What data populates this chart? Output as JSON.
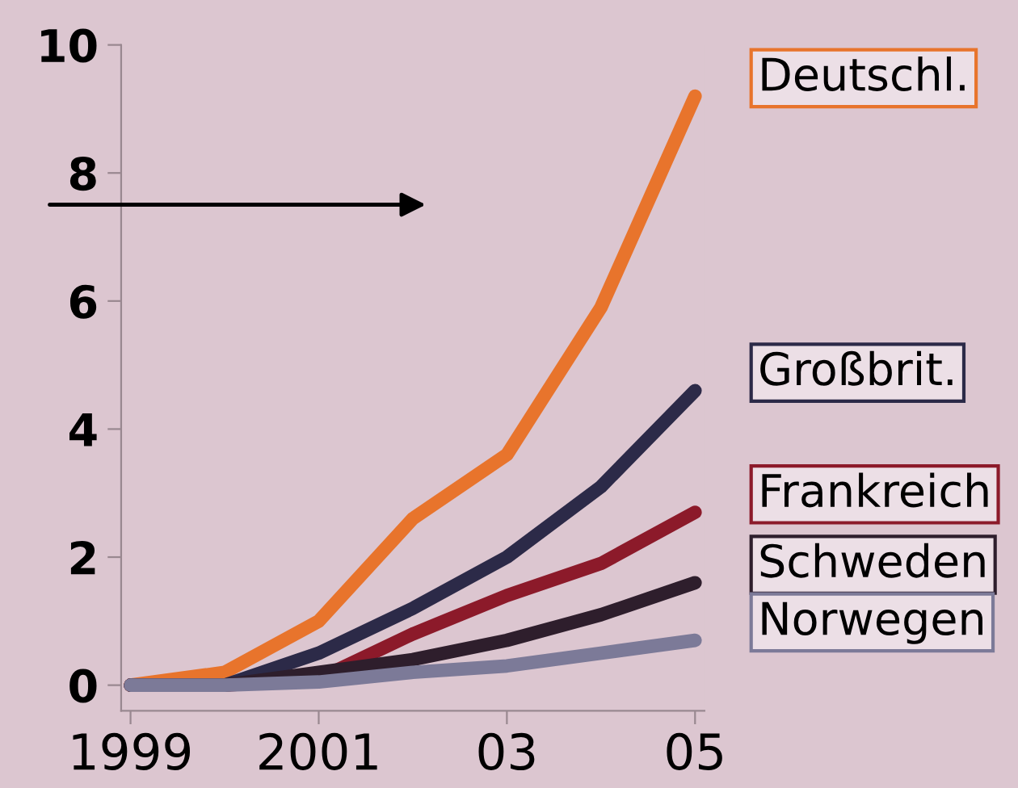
{
  "chart_data": {
    "type": "line",
    "x": [
      1999,
      2000,
      2001,
      2002,
      2003,
      2004,
      2005
    ],
    "series": [
      {
        "name": "Deutschl.",
        "color": "#e8742c",
        "values": [
          0,
          0.2,
          1.0,
          2.6,
          3.6,
          5.9,
          9.2
        ]
      },
      {
        "name": "Großbrit.",
        "color": "#2c2a48",
        "values": [
          0,
          0,
          0.5,
          1.2,
          2.0,
          3.1,
          4.6
        ]
      },
      {
        "name": "Frankreich",
        "color": "#8c1a2a",
        "values": [
          0,
          0,
          0.1,
          0.8,
          1.4,
          1.9,
          2.7
        ]
      },
      {
        "name": "Schweden",
        "color": "#2e1e2c",
        "values": [
          0,
          0,
          0.2,
          0.4,
          0.7,
          1.1,
          1.6
        ]
      },
      {
        "name": "Norwegen",
        "color": "#7c7a98",
        "values": [
          0,
          0,
          0.05,
          0.2,
          0.3,
          0.5,
          0.7
        ]
      }
    ],
    "xlim": [
      1998.9,
      2005.1
    ],
    "ylim": [
      -0.4,
      10
    ],
    "xticks": [
      1999,
      2001,
      {
        "value": 2003,
        "label": "03"
      },
      {
        "value": 2005,
        "label": "05"
      }
    ],
    "yticks": [
      0,
      2,
      4,
      6,
      8,
      10
    ],
    "legend": "right",
    "marker": "none",
    "line_style": "solid",
    "grid": false
  }
}
